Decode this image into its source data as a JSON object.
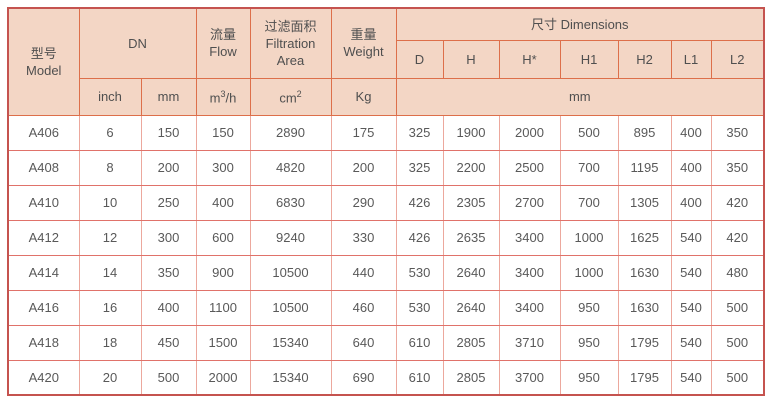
{
  "table": {
    "header": {
      "model_zh": "型号",
      "model_en": "Model",
      "dn": "DN",
      "flow_zh": "流量",
      "flow_en": "Flow",
      "filtration_zh": "过滤面积",
      "filtration_en_1": "Filtration",
      "filtration_en_2": "Area",
      "weight_zh": "重量",
      "weight_en": "Weight",
      "dimensions": "尺寸 Dimensions",
      "dim_cols": [
        "D",
        "H",
        "H*",
        "H1",
        "H2",
        "L1",
        "L2"
      ],
      "units": {
        "inch": "inch",
        "mm": "mm",
        "flow_base": "m",
        "flow_sup": "3",
        "flow_rest": "/h",
        "area_base": "cm",
        "area_sup": "2",
        "weight": "Kg",
        "dim_mm": "mm"
      }
    },
    "rows": [
      {
        "model": "A406",
        "inch": "6",
        "mm": "150",
        "flow": "150",
        "area": "2890",
        "weight": "175",
        "D": "325",
        "H": "1900",
        "Hstar": "2000",
        "H1": "500",
        "H2": "895",
        "L1": "400",
        "L2": "350"
      },
      {
        "model": "A408",
        "inch": "8",
        "mm": "200",
        "flow": "300",
        "area": "4820",
        "weight": "200",
        "D": "325",
        "H": "2200",
        "Hstar": "2500",
        "H1": "700",
        "H2": "1195",
        "L1": "400",
        "L2": "350"
      },
      {
        "model": "A410",
        "inch": "10",
        "mm": "250",
        "flow": "400",
        "area": "6830",
        "weight": "290",
        "D": "426",
        "H": "2305",
        "Hstar": "2700",
        "H1": "700",
        "H2": "1305",
        "L1": "400",
        "L2": "420"
      },
      {
        "model": "A412",
        "inch": "12",
        "mm": "300",
        "flow": "600",
        "area": "9240",
        "weight": "330",
        "D": "426",
        "H": "2635",
        "Hstar": "3400",
        "H1": "1000",
        "H2": "1625",
        "L1": "540",
        "L2": "420"
      },
      {
        "model": "A414",
        "inch": "14",
        "mm": "350",
        "flow": "900",
        "area": "10500",
        "weight": "440",
        "D": "530",
        "H": "2640",
        "Hstar": "3400",
        "H1": "1000",
        "H2": "1630",
        "L1": "540",
        "L2": "480"
      },
      {
        "model": "A416",
        "inch": "16",
        "mm": "400",
        "flow": "1100",
        "area": "10500",
        "weight": "460",
        "D": "530",
        "H": "2640",
        "Hstar": "3400",
        "H1": "950",
        "H2": "1630",
        "L1": "540",
        "L2": "500"
      },
      {
        "model": "A418",
        "inch": "18",
        "mm": "450",
        "flow": "1500",
        "area": "15340",
        "weight": "640",
        "D": "610",
        "H": "2805",
        "Hstar": "3710",
        "H1": "950",
        "H2": "1795",
        "L1": "540",
        "L2": "500"
      },
      {
        "model": "A420",
        "inch": "20",
        "mm": "500",
        "flow": "2000",
        "area": "15340",
        "weight": "690",
        "D": "610",
        "H": "2805",
        "Hstar": "3700",
        "H1": "950",
        "H2": "1795",
        "L1": "540",
        "L2": "500"
      }
    ]
  },
  "colors": {
    "header_background": "#f3d6c5",
    "header_border": "#dd6f4a",
    "outer_border": "#c5534f",
    "data_border_vertical": "#eca89d",
    "data_border_horizontal": "#e0726a",
    "text": "#595959"
  }
}
